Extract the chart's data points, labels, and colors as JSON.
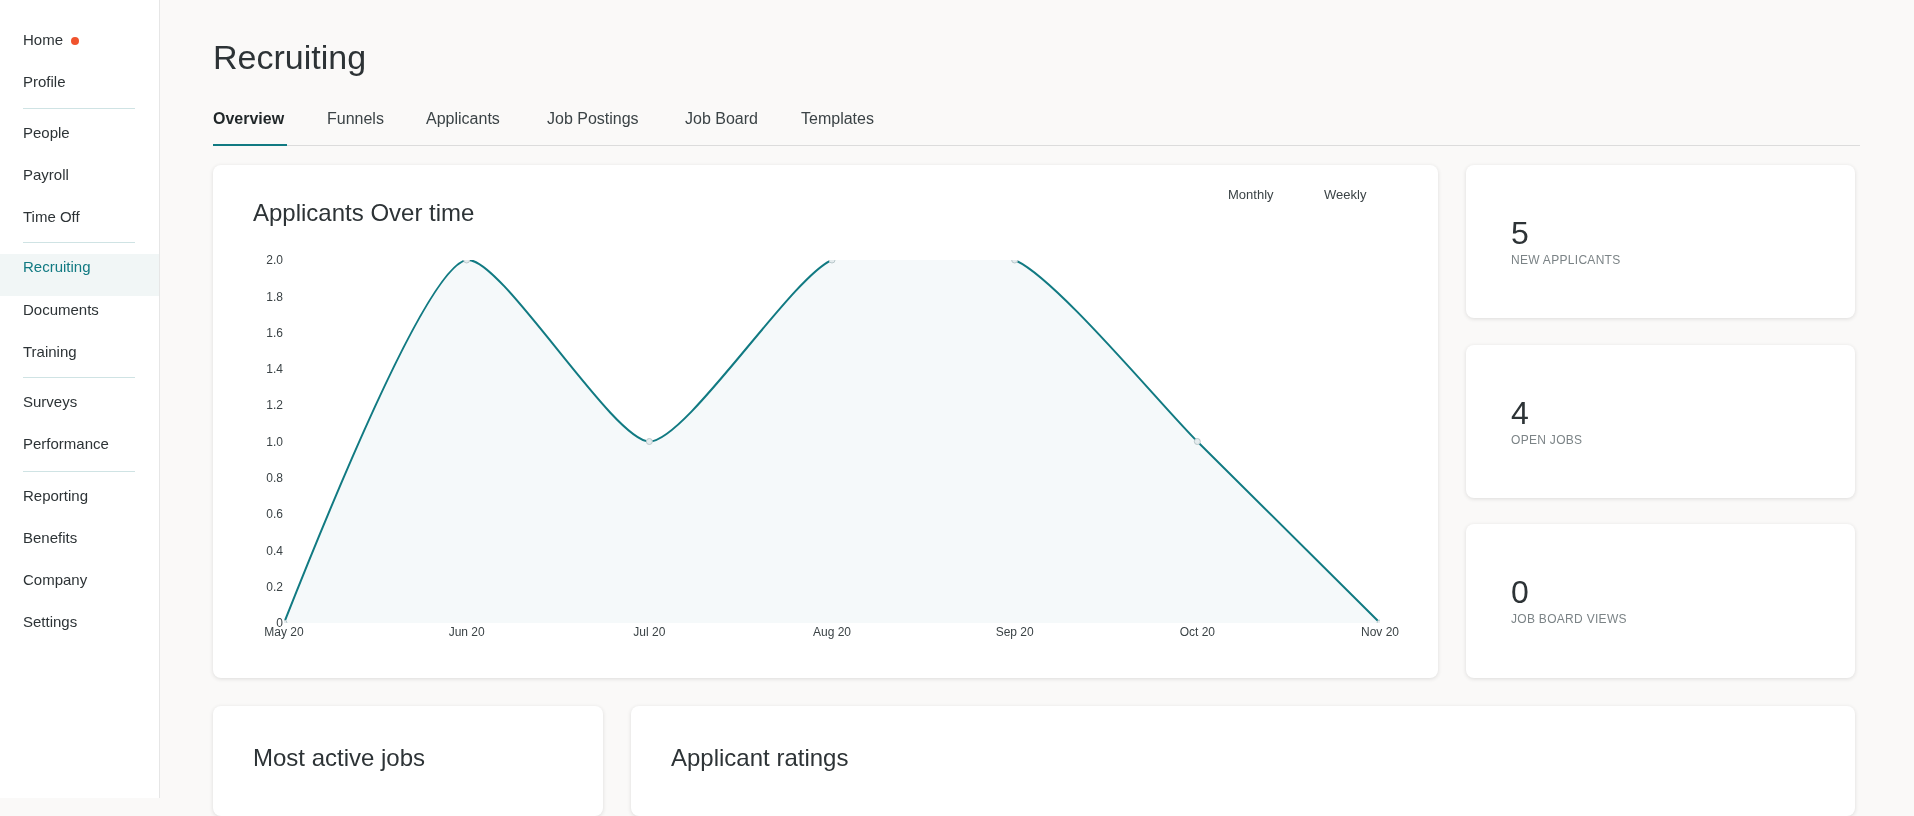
{
  "chart_data": [
    {
      "type": "other",
      "annotations": [
        "Home",
        "Profile",
        "People",
        "Payroll",
        "Time Off",
        "Recruiting",
        "Documents",
        "Training",
        "Surveys",
        "Performance",
        "Reporting",
        "Benefits",
        "Company",
        "Settings"
      ]
    },
    {
      "type": "other",
      "title": "Recruiting",
      "annotations": [
        "Overview",
        "Funnels",
        "Applicants",
        "Job Postings",
        "Job Board",
        "Templates"
      ]
    },
    {
      "type": "area",
      "title": "Applicants Over time",
      "categories": [
        "May 20",
        "Jun 20",
        "Jul 20",
        "Aug 20",
        "Sep 20",
        "Oct 20",
        "Nov 20"
      ],
      "series": [
        {
          "color": "#117a82",
          "values": [
            0,
            2,
            1,
            2,
            2,
            1,
            0
          ]
        }
      ],
      "ylim": [
        0,
        2
      ],
      "yticks": [
        {
          "value": 0,
          "label": "0"
        },
        {
          "value": 0.2,
          "label": "0.2"
        },
        {
          "value": 0.4,
          "label": "0.4"
        },
        {
          "value": 0.6,
          "label": "0.6"
        },
        {
          "value": 0.8,
          "label": "0.8"
        },
        {
          "value": 1,
          "label": "1.0"
        },
        {
          "value": 1.2,
          "label": "1.2"
        },
        {
          "value": 1.4,
          "label": "1.4"
        },
        {
          "value": 1.6,
          "label": "1.6"
        },
        {
          "value": 1.8,
          "label": "1.8"
        },
        {
          "value": 2,
          "label": "2.0"
        }
      ],
      "marker": "circle",
      "grid": false,
      "legend": false,
      "annotations": [
        "Monthly",
        "Weekly"
      ]
    },
    {
      "type": "other",
      "title": "NEW APPLICANTS",
      "annotations": [
        "5"
      ]
    },
    {
      "type": "other",
      "title": "OPEN JOBS",
      "annotations": [
        "4"
      ]
    },
    {
      "type": "other",
      "title": "JOB BOARD VIEWS",
      "annotations": [
        "0"
      ]
    },
    {
      "type": "other",
      "title": "Most active jobs"
    },
    {
      "type": "other",
      "title": "Applicant ratings"
    }
  ]
}
